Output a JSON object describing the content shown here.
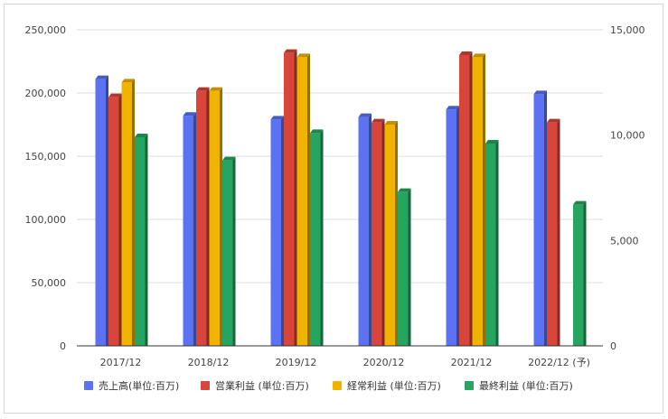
{
  "chart_data": {
    "type": "bar",
    "categories": [
      "2017/12",
      "2018/12",
      "2019/12",
      "2020/12",
      "2021/12",
      "2022/12 (予)"
    ],
    "series": [
      {
        "name": "売上高(単位:百万)",
        "axis": "left",
        "color": "#5b73f2",
        "values": [
          211000,
          182000,
          179000,
          181000,
          187000,
          199000
        ]
      },
      {
        "name": "営業利益 (単位:百万)",
        "axis": "right",
        "color": "#d7453b",
        "values": [
          11800,
          12100,
          13900,
          10600,
          13800,
          10600
        ]
      },
      {
        "name": "経常利益 (単位:百万)",
        "axis": "right",
        "color": "#f0b400",
        "values": [
          12500,
          12100,
          13700,
          10500,
          13700,
          null
        ]
      },
      {
        "name": "最終利益 (単位:百万)",
        "axis": "right",
        "color": "#25a55f",
        "values": [
          9900,
          8800,
          10100,
          7300,
          9600,
          6700
        ]
      }
    ],
    "y_left": {
      "min": 0,
      "max": 250000,
      "ticks": [
        "0",
        "50,000",
        "100,000",
        "150,000",
        "200,000",
        "250,000"
      ]
    },
    "y_right": {
      "min": 0,
      "max": 15000,
      "ticks": [
        "0",
        "5,000",
        "10,000",
        "15,000"
      ]
    },
    "grid": true,
    "legend_position": "bottom",
    "title": "",
    "xlabel": "",
    "ylabel": ""
  }
}
